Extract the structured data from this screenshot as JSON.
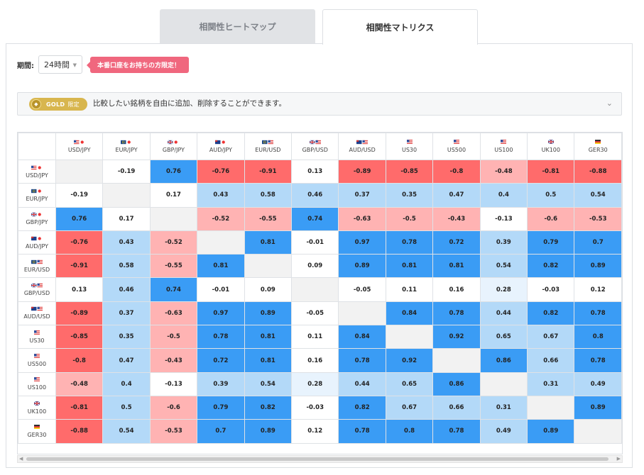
{
  "tabs": [
    {
      "label": "相関性ヒートマップ",
      "active": false
    },
    {
      "label": "相関性マトリクス",
      "active": true
    }
  ],
  "period": {
    "label": "期間:",
    "value": "24時間"
  },
  "promo": "本番口座をお持ちの方限定！",
  "info": {
    "badge": "GOLD",
    "badge_suffix": "限定",
    "text": "比較したい銘柄を自由に追加、削除することができます。"
  },
  "colors": {
    "strong_pos": "#3a9cf5",
    "mid_pos": "#b3d9f8",
    "weak_pos": "#e8f3fd",
    "strong_neg": "#ff6b6b",
    "mid_neg": "#ffb3b3",
    "neutral": "#ffffff",
    "diagonal": "#f2f2f2"
  },
  "chart_data": {
    "type": "heatmap",
    "symbols": [
      "USD/JPY",
      "EUR/JPY",
      "GBP/JPY",
      "AUD/JPY",
      "EUR/USD",
      "GBP/USD",
      "AUD/USD",
      "US30",
      "US500",
      "US100",
      "UK100",
      "GER30"
    ],
    "flags": [
      "us-jp",
      "eu-jp",
      "gb-jp",
      "au-jp",
      "eu-us",
      "gb-us",
      "au-us",
      "us",
      "us",
      "us",
      "gb",
      "de"
    ],
    "values": [
      [
        null,
        "-0.19",
        "0.76",
        "-0.76",
        "-0.91",
        "0.13",
        "-0.89",
        "-0.85",
        "-0.8",
        "-0.48",
        "-0.81",
        "-0.88"
      ],
      [
        "-0.19",
        null,
        "0.17",
        "0.43",
        "0.58",
        "0.46",
        "0.37",
        "0.35",
        "0.47",
        "0.4",
        "0.5",
        "0.54"
      ],
      [
        "0.76",
        "0.17",
        null,
        "-0.52",
        "-0.55",
        "0.74",
        "-0.63",
        "-0.5",
        "-0.43",
        "-0.13",
        "-0.6",
        "-0.53"
      ],
      [
        "-0.76",
        "0.43",
        "-0.52",
        null,
        "0.81",
        "-0.01",
        "0.97",
        "0.78",
        "0.72",
        "0.39",
        "0.79",
        "0.7"
      ],
      [
        "-0.91",
        "0.58",
        "-0.55",
        "0.81",
        null,
        "0.09",
        "0.89",
        "0.81",
        "0.81",
        "0.54",
        "0.82",
        "0.89"
      ],
      [
        "0.13",
        "0.46",
        "0.74",
        "-0.01",
        "0.09",
        null,
        "-0.05",
        "0.11",
        "0.16",
        "0.28",
        "-0.03",
        "0.12"
      ],
      [
        "-0.89",
        "0.37",
        "-0.63",
        "0.97",
        "0.89",
        "-0.05",
        null,
        "0.84",
        "0.78",
        "0.44",
        "0.82",
        "0.78"
      ],
      [
        "-0.85",
        "0.35",
        "-0.5",
        "0.78",
        "0.81",
        "0.11",
        "0.84",
        null,
        "0.92",
        "0.65",
        "0.67",
        "0.8"
      ],
      [
        "-0.8",
        "0.47",
        "-0.43",
        "0.72",
        "0.81",
        "0.16",
        "0.78",
        "0.92",
        null,
        "0.86",
        "0.66",
        "0.78"
      ],
      [
        "-0.48",
        "0.4",
        "-0.13",
        "0.39",
        "0.54",
        "0.28",
        "0.44",
        "0.65",
        "0.86",
        null,
        "0.31",
        "0.49"
      ],
      [
        "-0.81",
        "0.5",
        "-0.6",
        "0.79",
        "0.82",
        "-0.03",
        "0.82",
        "0.67",
        "0.66",
        "0.31",
        null,
        "0.89"
      ],
      [
        "-0.88",
        "0.54",
        "-0.53",
        "0.7",
        "0.89",
        "0.12",
        "0.78",
        "0.8",
        "0.78",
        "0.49",
        "0.89",
        null
      ]
    ]
  }
}
